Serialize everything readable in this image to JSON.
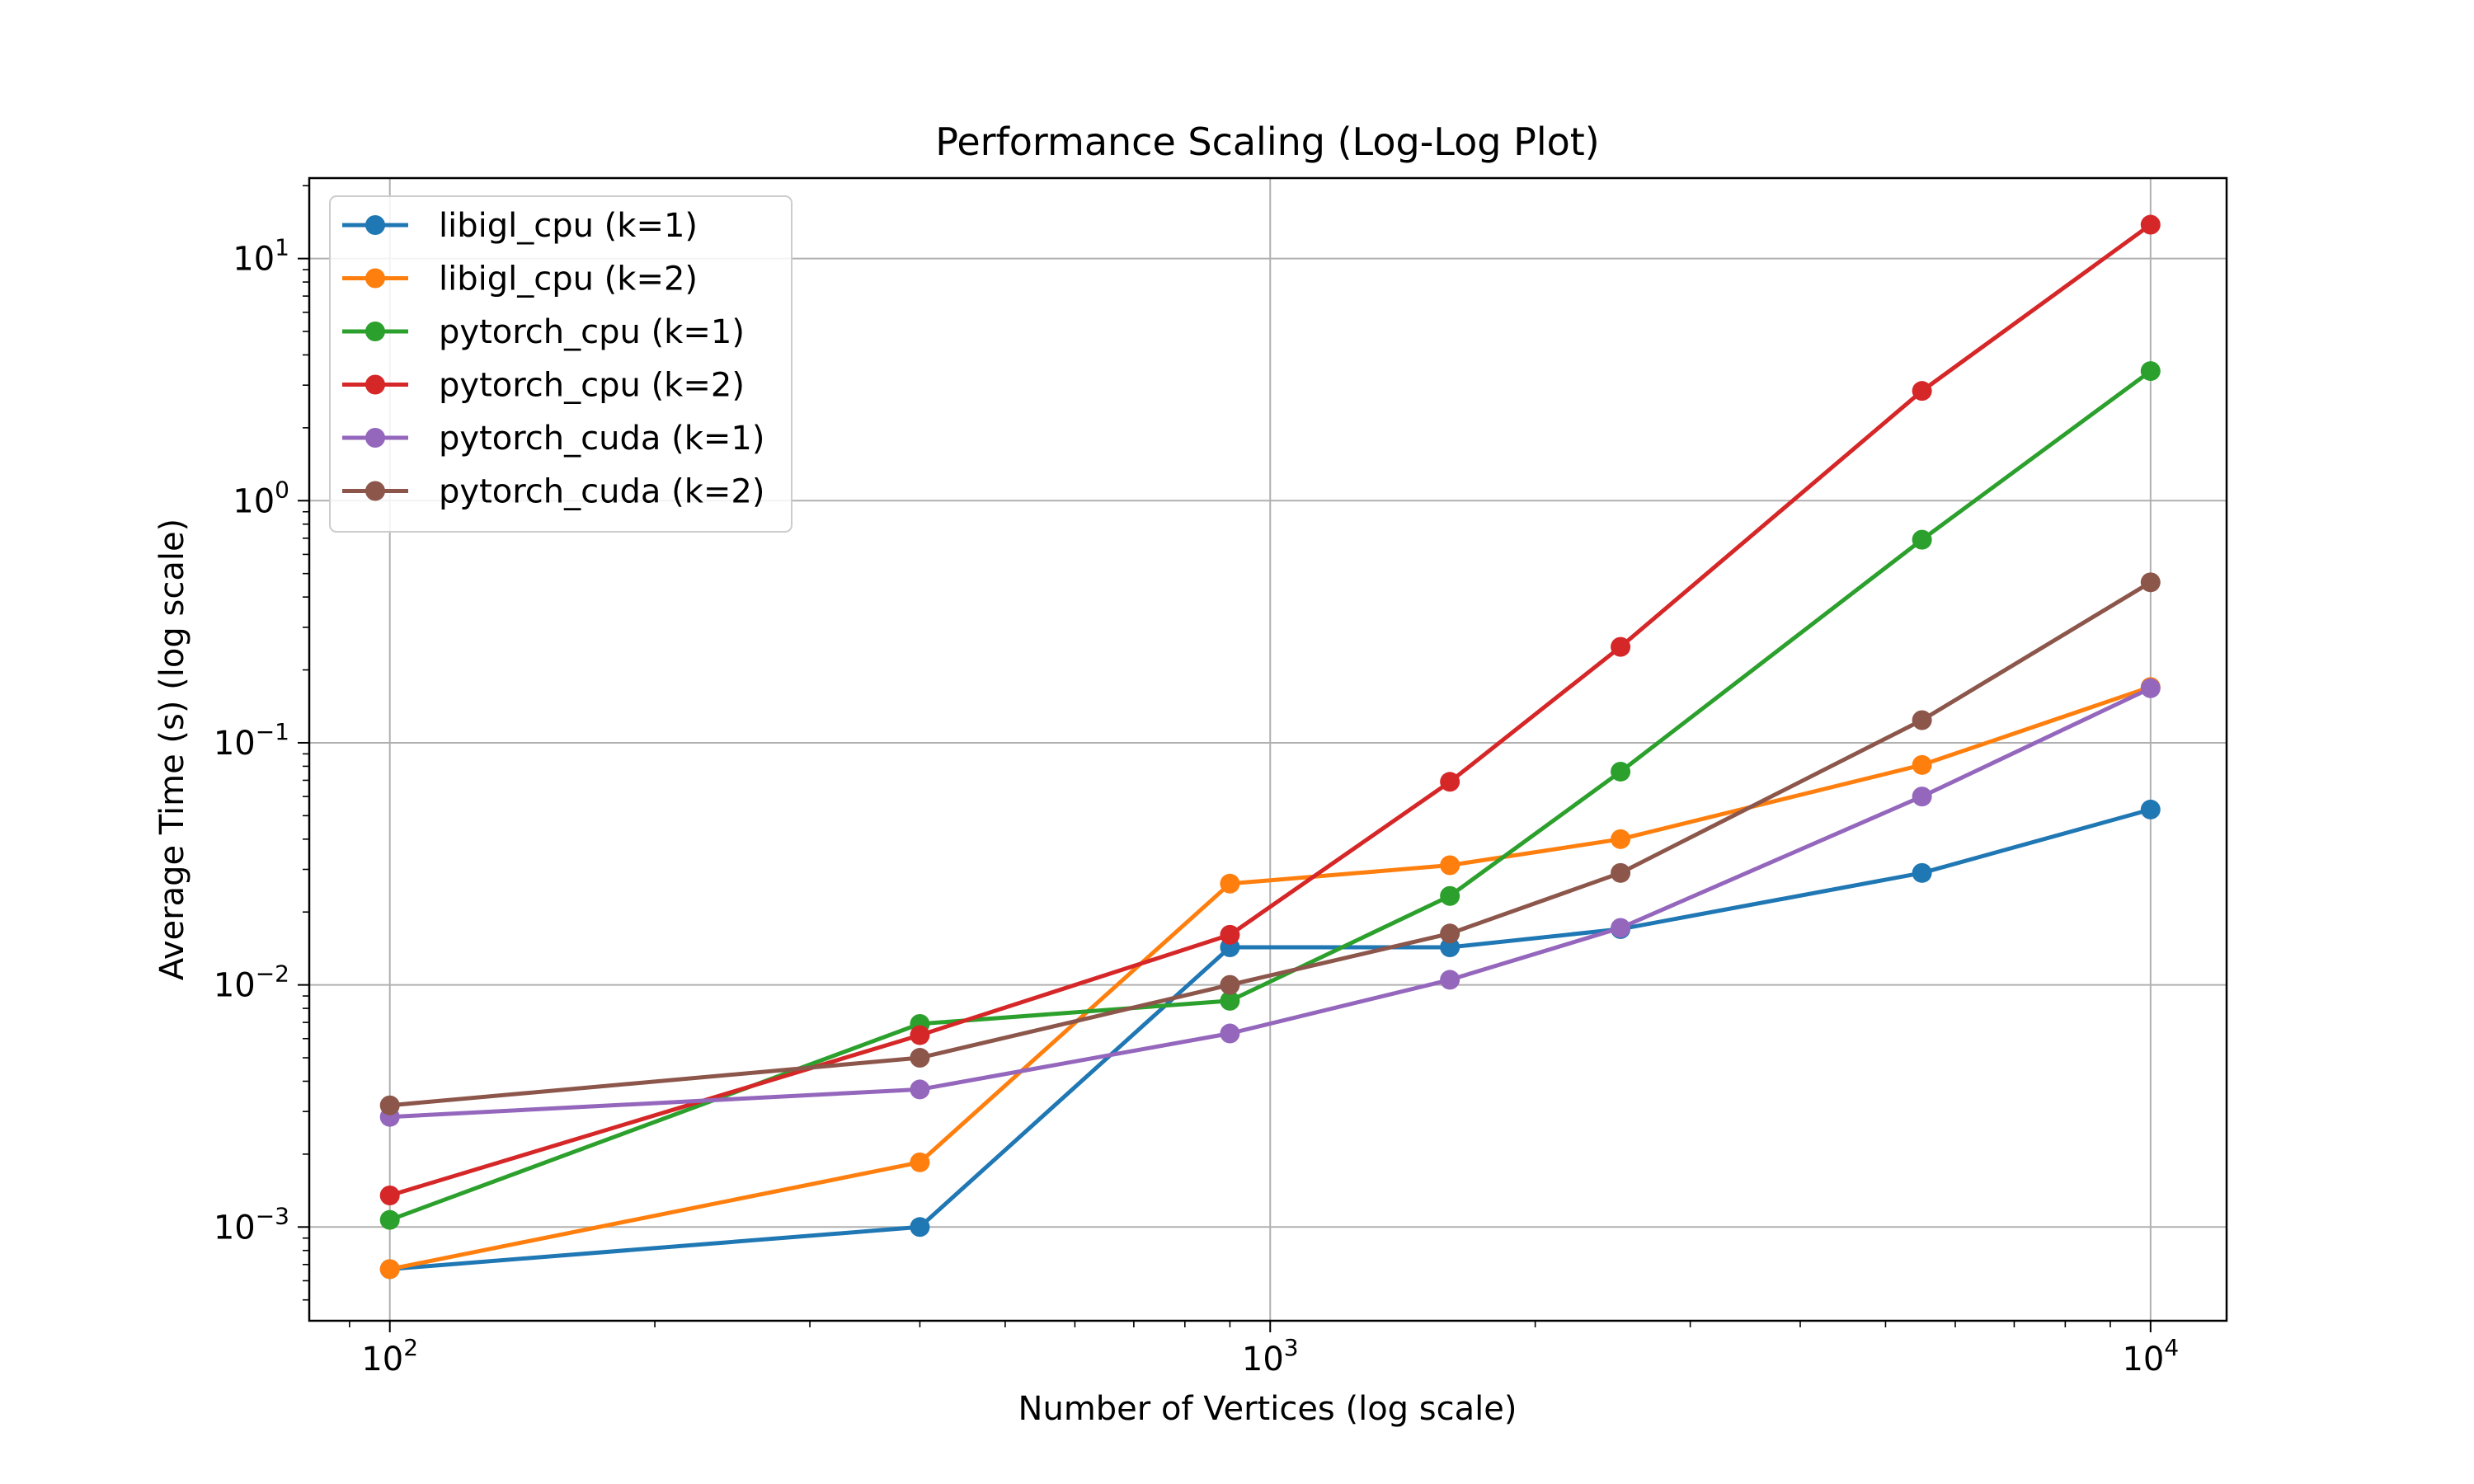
{
  "chart_data": {
    "type": "line",
    "title": "Performance Scaling (Log-Log Plot)",
    "xlabel": "Number of Vertices (log scale)",
    "ylabel": "Average Time (s) (log scale)",
    "xscale": "log",
    "yscale": "log",
    "xlim": [
      81,
      12200
    ],
    "ylim": [
      0.00041,
      21.5
    ],
    "grid": true,
    "legend_position": "top-left",
    "x_major_ticks": [
      {
        "value": 100,
        "base": "10",
        "exp": "2"
      },
      {
        "value": 1000,
        "base": "10",
        "exp": "3"
      },
      {
        "value": 10000,
        "base": "10",
        "exp": "4"
      }
    ],
    "y_major_ticks": [
      {
        "value": 0.001,
        "base": "10",
        "exp": "−3"
      },
      {
        "value": 0.01,
        "base": "10",
        "exp": "−2"
      },
      {
        "value": 0.1,
        "base": "10",
        "exp": "−1"
      },
      {
        "value": 1,
        "base": "10",
        "exp": "0"
      },
      {
        "value": 10,
        "base": "10",
        "exp": "1"
      }
    ],
    "x": [
      100,
      400,
      900,
      1600,
      2500,
      5500,
      10000
    ],
    "series": [
      {
        "name": "libigl_cpu (k=1)",
        "color": "#1f77b4",
        "values": [
          0.00067,
          0.001,
          0.0143,
          0.0143,
          0.017,
          0.029,
          0.053
        ]
      },
      {
        "name": "libigl_cpu (k=2)",
        "color": "#ff7f0e",
        "values": [
          0.00067,
          0.00185,
          0.0262,
          0.0312,
          0.04,
          0.081,
          0.17
        ]
      },
      {
        "name": "pytorch_cpu (k=1)",
        "color": "#2ca02c",
        "values": [
          0.00107,
          0.0069,
          0.0086,
          0.0233,
          0.076,
          0.69,
          3.43
        ]
      },
      {
        "name": "pytorch_cpu (k=2)",
        "color": "#d62728",
        "values": [
          0.00135,
          0.0062,
          0.0161,
          0.069,
          0.249,
          2.84,
          13.8
        ]
      },
      {
        "name": "pytorch_cuda (k=1)",
        "color": "#9467bd",
        "values": [
          0.00285,
          0.0037,
          0.0063,
          0.0105,
          0.0172,
          0.06,
          0.168
        ]
      },
      {
        "name": "pytorch_cuda (k=2)",
        "color": "#8c564b",
        "values": [
          0.00318,
          0.005,
          0.01,
          0.0163,
          0.029,
          0.124,
          0.46
        ]
      }
    ]
  }
}
